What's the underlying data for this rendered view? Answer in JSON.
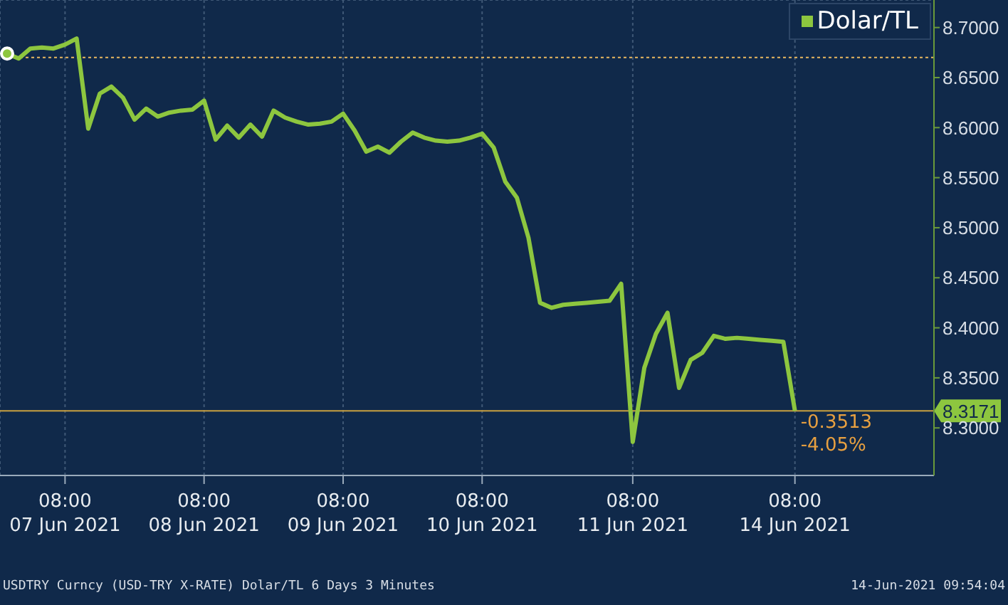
{
  "chart_data": {
    "type": "line",
    "categories": [
      null,
      null,
      null,
      null,
      null,
      "08:00\n07 Jun 2021",
      null,
      null,
      null,
      null,
      null,
      null,
      null,
      null,
      null,
      null,
      null,
      "08:00\n08 Jun 2021",
      null,
      null,
      null,
      null,
      null,
      null,
      null,
      null,
      null,
      null,
      null,
      "08:00\n09 Jun 2021",
      null,
      null,
      null,
      null,
      null,
      null,
      null,
      null,
      null,
      null,
      null,
      "08:00\n10 Jun 2021",
      null,
      null,
      null,
      null,
      null,
      null,
      null,
      null,
      null,
      null,
      null,
      null,
      "08:00\n11 Jun 2021",
      null,
      null,
      null,
      null,
      null,
      null,
      null,
      null,
      null,
      null,
      null,
      null,
      null,
      "08:00\n14 Jun 2021",
      null,
      null,
      null,
      null,
      null,
      null,
      null,
      null,
      null,
      null,
      null,
      null
    ],
    "series": [
      {
        "name": "Dolar/TL",
        "color": "#8dc63f",
        "values": [
          8.674,
          8.669,
          8.679,
          8.68,
          8.679,
          8.683,
          8.689,
          8.599,
          8.634,
          8.641,
          8.63,
          8.608,
          8.619,
          8.611,
          8.615,
          8.617,
          8.618,
          8.627,
          8.588,
          8.602,
          8.59,
          8.603,
          8.591,
          8.617,
          8.61,
          8.606,
          8.603,
          8.604,
          8.606,
          8.614,
          8.597,
          8.576,
          8.581,
          8.575,
          8.586,
          8.595,
          8.59,
          8.587,
          8.586,
          8.587,
          8.59,
          8.594,
          8.58,
          8.546,
          8.53,
          8.49,
          8.425,
          8.42,
          8.423,
          8.424,
          8.425,
          8.426,
          8.427,
          8.444,
          8.286,
          8.36,
          8.394,
          8.415,
          8.34,
          8.368,
          8.375,
          8.392,
          8.389,
          8.39,
          8.389,
          8.388,
          8.387,
          8.386,
          8.317,
          null,
          null,
          null,
          null,
          null,
          null,
          null,
          null,
          null,
          null,
          null,
          null
        ]
      }
    ],
    "ylim": [
      8.2525,
      8.7275
    ],
    "yticks": [
      {
        "value": 8.3,
        "label": "8.3000"
      },
      {
        "value": 8.35,
        "label": "8.3500"
      },
      {
        "value": 8.4,
        "label": "8.4000"
      },
      {
        "value": 8.45,
        "label": "8.4500"
      },
      {
        "value": 8.5,
        "label": "8.5000"
      },
      {
        "value": 8.55,
        "label": "8.5500"
      },
      {
        "value": 8.6,
        "label": "8.6000"
      },
      {
        "value": 8.65,
        "label": "8.6500"
      },
      {
        "value": 8.7,
        "label": "8.7000"
      }
    ],
    "grid": true,
    "legend": "top right",
    "marker": "none",
    "line_style": "solid",
    "ref_lines": [
      {
        "axis": "y",
        "value": 8.67,
        "color": "#e8b860",
        "line_style": "dotted"
      },
      {
        "axis": "y",
        "value": 8.3171,
        "label": "8.3171",
        "color": "#c8a040",
        "line_style": "solid"
      }
    ],
    "annotations": [
      "-0.3513",
      "-4.05%",
      "USDTRY Curncy (USD-TRY X-RATE) Dolar/TL 6 Days 3 Minutes",
      "14-Jun-2021 09:54:04"
    ]
  }
}
